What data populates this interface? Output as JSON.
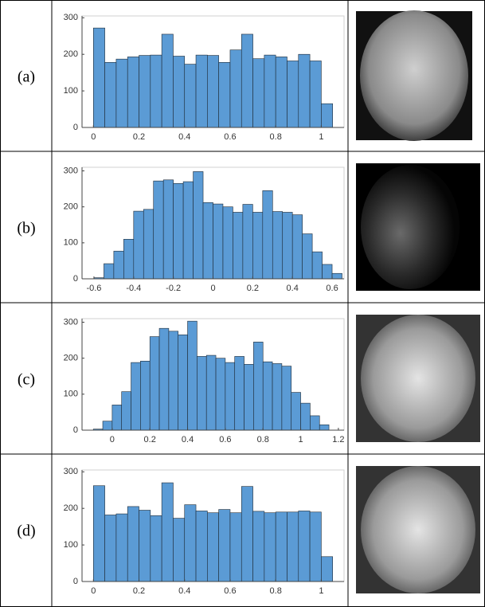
{
  "panel_labels": [
    "(a)",
    "(b)",
    "(c)",
    "(d)"
  ],
  "chart_data": [
    {
      "type": "histogram",
      "color": "#5b9bd5",
      "bins": [
        0,
        0.05,
        0.1,
        0.15,
        0.2,
        0.25,
        0.3,
        0.35,
        0.4,
        0.45,
        0.5,
        0.55,
        0.6,
        0.65,
        0.7,
        0.75,
        0.8,
        0.85,
        0.9,
        0.95,
        1.0,
        1.05
      ],
      "values": [
        272,
        178,
        187,
        193,
        197,
        198,
        255,
        195,
        173,
        198,
        197,
        178,
        212,
        255,
        188,
        198,
        193,
        182,
        200,
        182,
        65
      ],
      "xlim": [
        -0.05,
        1.1
      ],
      "xticks": [
        0,
        0.2,
        0.4,
        0.6,
        0.8,
        1
      ],
      "ylim": [
        0,
        305
      ],
      "yticks": [
        0,
        100,
        200,
        300
      ]
    },
    {
      "type": "histogram",
      "color": "#5b9bd5",
      "bins": [
        -0.6,
        -0.55,
        -0.5,
        -0.45,
        -0.4,
        -0.35,
        -0.3,
        -0.25,
        -0.2,
        -0.15,
        -0.1,
        -0.05,
        0,
        0.05,
        0.1,
        0.15,
        0.2,
        0.25,
        0.3,
        0.35,
        0.4,
        0.45,
        0.5,
        0.55,
        0.6,
        0.65
      ],
      "values": [
        3,
        42,
        77,
        110,
        188,
        193,
        272,
        275,
        265,
        270,
        298,
        212,
        208,
        200,
        185,
        207,
        185,
        245,
        187,
        185,
        178,
        125,
        75,
        40,
        15
      ],
      "xlim": [
        -0.66,
        0.66
      ],
      "xticks": [
        -0.6,
        -0.4,
        -0.2,
        0,
        0.2,
        0.4,
        0.6
      ],
      "ylim": [
        0,
        310
      ],
      "yticks": [
        0,
        100,
        200,
        300
      ]
    },
    {
      "type": "histogram",
      "color": "#5b9bd5",
      "bins": [
        -0.1,
        -0.05,
        0,
        0.05,
        0.1,
        0.15,
        0.2,
        0.25,
        0.3,
        0.35,
        0.4,
        0.45,
        0.5,
        0.55,
        0.6,
        0.65,
        0.7,
        0.75,
        0.8,
        0.85,
        0.9,
        0.95,
        1.0,
        1.05,
        1.1,
        1.15
      ],
      "values": [
        3,
        25,
        70,
        107,
        188,
        192,
        260,
        283,
        275,
        265,
        303,
        205,
        208,
        200,
        188,
        205,
        183,
        245,
        190,
        185,
        178,
        105,
        75,
        40,
        15
      ],
      "xlim": [
        -0.16,
        1.23
      ],
      "xticks": [
        0,
        0.2,
        0.4,
        0.6,
        0.8,
        1,
        1.2
      ],
      "ylim": [
        0,
        310
      ],
      "yticks": [
        0,
        100,
        200,
        300
      ]
    },
    {
      "type": "histogram",
      "color": "#5b9bd5",
      "bins": [
        0,
        0.05,
        0.1,
        0.15,
        0.2,
        0.25,
        0.3,
        0.35,
        0.4,
        0.45,
        0.5,
        0.55,
        0.6,
        0.65,
        0.7,
        0.75,
        0.8,
        0.85,
        0.9,
        0.95,
        1.0,
        1.05
      ],
      "values": [
        262,
        182,
        185,
        205,
        195,
        180,
        270,
        173,
        210,
        193,
        188,
        197,
        188,
        260,
        192,
        188,
        190,
        190,
        193,
        190,
        68
      ],
      "xlim": [
        -0.05,
        1.1
      ],
      "xticks": [
        0,
        0.2,
        0.4,
        0.6,
        0.8,
        1
      ],
      "ylim": [
        0,
        305
      ],
      "yticks": [
        0,
        100,
        200,
        300
      ]
    }
  ]
}
